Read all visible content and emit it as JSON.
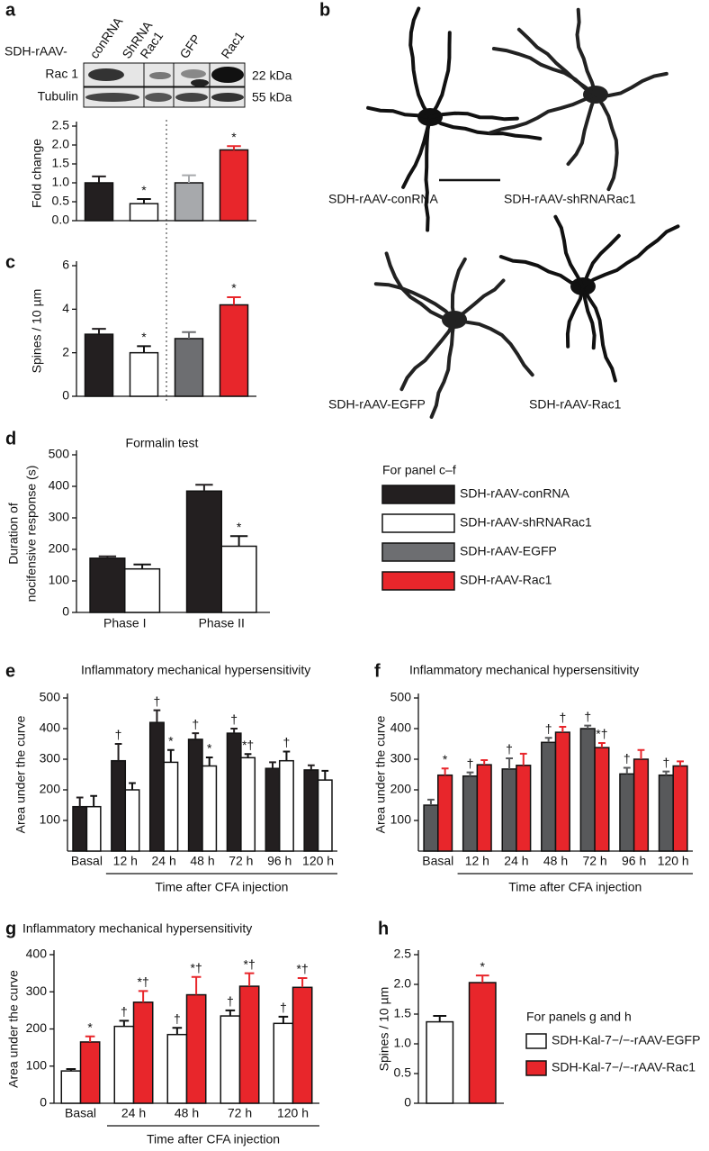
{
  "panel_labels": [
    "a",
    "b",
    "c",
    "d",
    "e",
    "f",
    "g",
    "h"
  ],
  "blot": {
    "prefix": "SDH-rAAV-",
    "lanes": [
      "conRNA",
      "ShRNA",
      "Rac1",
      "GFP",
      "Rac1"
    ],
    "rows": [
      "Rac 1",
      "Tubulin"
    ],
    "sizes": [
      "22 kDa",
      "55 kDa"
    ]
  },
  "neurons": {
    "captions": [
      "SDH-rAAV-conRNA",
      "SDH-rAAV-shRNARac1",
      "SDH-rAAV-EGFP",
      "SDH-rAAV-Rac1"
    ]
  },
  "legends": [
    {
      "title": "For panel c–f",
      "entries": [
        {
          "name": "SDH-rAAV-conRNA",
          "color": "#231f20"
        },
        {
          "name": "SDH-rAAV-shRNARac1",
          "color": "#ffffff"
        },
        {
          "name": "SDH-rAAV-EGFP",
          "color": "#6d6e71"
        },
        {
          "name": "SDH-rAAV-Rac1",
          "color": "#e8262b"
        }
      ]
    },
    {
      "title": "For panels g and h",
      "entries": [
        {
          "name": "SDH-Kal-7−/−-rAAV-EGFP",
          "color": "#ffffff"
        },
        {
          "name": "SDH-Kal-7−/−-rAAV-Rac1",
          "color": "#e8262b"
        }
      ]
    }
  ],
  "chart_data": [
    {
      "type": "bar",
      "ylabel": "Fold change",
      "categories": [
        null,
        null,
        null,
        null
      ],
      "values": [
        1.0,
        0.45,
        1.0,
        1.87
      ],
      "errors": [
        0.17,
        0.12,
        0.2,
        0.1
      ],
      "colors": [
        "#231f20",
        "#ffffff",
        "#a7a9ac",
        "#e8262b"
      ],
      "markers": [
        null,
        "*",
        null,
        "*"
      ],
      "ylim": [
        0,
        2.5
      ],
      "yticks": [
        {
          "value": 0,
          "label": "0.0"
        },
        0.5,
        {
          "value": 1,
          "label": "1.0"
        },
        1.5,
        {
          "value": 2,
          "label": "2.0"
        },
        2.5
      ]
    },
    {
      "type": "bar",
      "ylabel": "Spines / 10 µm",
      "categories": [
        null,
        null,
        null,
        null
      ],
      "values": [
        2.85,
        2.0,
        2.65,
        4.2
      ],
      "errors": [
        0.25,
        0.3,
        0.3,
        0.35
      ],
      "colors": [
        "#231f20",
        "#ffffff",
        "#6d6e71",
        "#e8262b"
      ],
      "markers": [
        null,
        "*",
        null,
        "*"
      ],
      "ylim": [
        0,
        6
      ],
      "yticks": [
        0,
        2,
        4,
        6
      ]
    },
    {
      "type": "bar",
      "title": "Formalin test",
      "ylabel": [
        "Duration of",
        "nocifensive response (s)"
      ],
      "categories": [
        "Phase I",
        "Phase II"
      ],
      "series": [
        {
          "name": "SDH-rAAV-conRNA",
          "color": "#231f20",
          "values": [
            172,
            385
          ],
          "errors": [
            6,
            20
          ],
          "markers": [
            null,
            null
          ]
        },
        {
          "name": "SDH-rAAV-shRNARac1",
          "color": "#ffffff",
          "values": [
            138,
            210
          ],
          "errors": [
            14,
            32
          ],
          "markers": [
            null,
            "*"
          ]
        }
      ],
      "ylim": [
        0,
        500
      ],
      "yticks": [
        0,
        100,
        200,
        300,
        400,
        500
      ]
    },
    {
      "type": "bar",
      "title": "Inflammatory mechanical hypersensitivity",
      "ylabel": "Area under the curve",
      "xlabel": "Time after CFA injection",
      "categories": [
        "Basal",
        "12 h",
        "24 h",
        "48 h",
        "72 h",
        "96 h",
        "120 h"
      ],
      "series": [
        {
          "name": "SDH-rAAV-conRNA",
          "color": "#231f20",
          "values": [
            145,
            295,
            420,
            365,
            385,
            270,
            265
          ],
          "errors": [
            30,
            55,
            40,
            20,
            15,
            20,
            15
          ],
          "markers": [
            null,
            "†",
            "†",
            "†",
            "†",
            null,
            null
          ]
        },
        {
          "name": "SDH-rAAV-shRNARac1",
          "color": "#ffffff",
          "values": [
            145,
            200,
            290,
            278,
            305,
            295,
            232
          ],
          "errors": [
            35,
            22,
            40,
            28,
            12,
            30,
            30
          ],
          "markers": [
            null,
            null,
            "*",
            "*",
            "*†",
            "†",
            null
          ]
        }
      ],
      "ylim": [
        0,
        500
      ],
      "yticks": [
        100,
        200,
        300,
        400,
        500
      ]
    },
    {
      "type": "bar",
      "title": "Inflammatory mechanical hypersensitivity",
      "ylabel": "Area under the curve",
      "xlabel": "Time after CFA injection",
      "categories": [
        "Basal",
        "12 h",
        "24 h",
        "48 h",
        "72 h",
        "96 h",
        "120 h"
      ],
      "series": [
        {
          "name": "SDH-rAAV-EGFP",
          "color": "#58595b",
          "values": [
            150,
            245,
            268,
            355,
            400,
            252,
            248
          ],
          "errors": [
            18,
            12,
            35,
            15,
            10,
            20,
            12
          ],
          "markers": [
            null,
            "†",
            "†",
            "†",
            "†",
            "†",
            "†"
          ]
        },
        {
          "name": "SDH-rAAV-Rac1",
          "color": "#e8262b",
          "values": [
            248,
            282,
            280,
            388,
            338,
            300,
            278
          ],
          "errors": [
            22,
            15,
            38,
            18,
            15,
            30,
            15
          ],
          "markers": [
            "*",
            null,
            null,
            "†",
            "*†",
            null,
            null
          ]
        }
      ],
      "ylim": [
        0,
        500
      ],
      "yticks": [
        100,
        200,
        300,
        400,
        500
      ]
    },
    {
      "type": "bar",
      "title": "Inflammatory mechanical hypersensitivity",
      "ylabel": "Area under the curve",
      "xlabel": "Time after CFA injection",
      "categories": [
        "Basal",
        "24 h",
        "48 h",
        "72 h",
        "120 h"
      ],
      "series": [
        {
          "name": "SDH-Kal-7−/−-rAAV-EGFP",
          "color": "#ffffff",
          "values": [
            87,
            207,
            185,
            235,
            215
          ],
          "errors": [
            5,
            15,
            18,
            15,
            18
          ],
          "markers": [
            null,
            "†",
            "†",
            "†",
            "†"
          ]
        },
        {
          "name": "SDH-Kal-7−/−-rAAV-Rac1",
          "color": "#e8262b",
          "values": [
            165,
            272,
            292,
            315,
            312
          ],
          "errors": [
            15,
            30,
            48,
            35,
            25
          ],
          "markers": [
            "*",
            "*†",
            "*†",
            "*†",
            "*†"
          ]
        }
      ],
      "ylim": [
        0,
        400
      ],
      "yticks": [
        0,
        100,
        200,
        300,
        400
      ]
    },
    {
      "type": "bar",
      "ylabel": "Spines / 10 µm",
      "categories": [
        null,
        null
      ],
      "values": [
        1.37,
        2.03
      ],
      "errors": [
        0.1,
        0.12
      ],
      "colors": [
        "#ffffff",
        "#e8262b"
      ],
      "markers": [
        null,
        "*"
      ],
      "ylim": [
        0,
        2.5
      ],
      "yticks": [
        0,
        0.5,
        {
          "value": 1,
          "label": "1.0"
        },
        1.5,
        {
          "value": 2,
          "label": "2.0"
        },
        2.5
      ]
    }
  ]
}
